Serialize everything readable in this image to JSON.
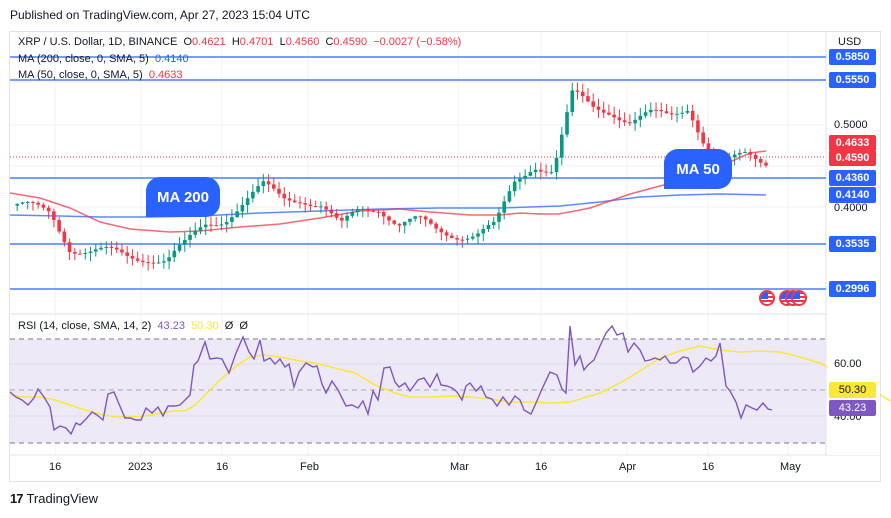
{
  "header": {
    "published": "Published on TradingView.com, Apr 27, 2023 15:04 UTC"
  },
  "symbol_legend": {
    "title": "XRP / U.S. Dollar, 1D, BINANCE",
    "o_label": "O",
    "o_value": "0.4621",
    "h_label": "H",
    "h_value": "0.4701",
    "l_label": "L",
    "l_value": "0.4560",
    "c_label": "C",
    "c_value": "0.4590",
    "change": "−0.0027 (−0.58%)"
  },
  "indicators": {
    "ma200": {
      "label": "MA (200, close, 0, SMA, 5)",
      "value": "0.4140",
      "color": "#2962ff"
    },
    "ma50": {
      "label": "MA (50, close, 0, SMA, 5)",
      "value": "0.4633",
      "color": "#f23645"
    },
    "rsi": {
      "label": "RSI (14, close, SMA, 14, 2)",
      "value": "43.23",
      "ma_value": "50.30",
      "extra1": "Ø",
      "extra2": "Ø"
    }
  },
  "price_axis": {
    "currency": "USD",
    "ticks": [
      "0.5000",
      "0.4000"
    ],
    "tags": [
      {
        "value": "0.5850",
        "type": "level",
        "color": "#2962ff"
      },
      {
        "value": "0.5550",
        "type": "level",
        "color": "#2962ff"
      },
      {
        "value": "0.4633",
        "type": "ma50",
        "color": "#f23645"
      },
      {
        "value": "0.4590",
        "type": "last",
        "color": "#f23645"
      },
      {
        "value": "0.4360",
        "type": "level",
        "color": "#2962ff"
      },
      {
        "value": "0.4140",
        "type": "ma200",
        "color": "#2962ff"
      },
      {
        "value": "0.3535",
        "type": "level",
        "color": "#2962ff"
      },
      {
        "value": "0.2996",
        "type": "level",
        "color": "#2962ff"
      }
    ]
  },
  "rsi_axis": {
    "ticks": [
      "60.00",
      "40.00"
    ],
    "tags": [
      {
        "value": "50.30",
        "color": "#fbe73a"
      },
      {
        "value": "43.23",
        "color": "#7e57c2"
      }
    ]
  },
  "time_axis": {
    "labels": [
      "16",
      "2023",
      "16",
      "Feb",
      "Mar",
      "16",
      "Apr",
      "16",
      "May"
    ]
  },
  "annotations": {
    "ma200_bubble": "MA 200",
    "ma50_bubble": "MA 50"
  },
  "footer": {
    "brand": "TradingView",
    "logo": "17"
  },
  "colors": {
    "up": "#089981",
    "down": "#f23645",
    "level_line": "#2962ff",
    "rsi_line": "#7e57c2",
    "rsi_ma": "#fbe73a",
    "rsi_band": "#ede9f7"
  },
  "chart_data": [
    {
      "type": "candlestick",
      "title": "XRP / U.S. Dollar, 1D, BINANCE",
      "xlabel": "",
      "ylabel": "USD",
      "x_ticks": [
        "16",
        "2023",
        "16",
        "Feb",
        "Mar",
        "16",
        "Apr",
        "16",
        "May"
      ],
      "ylim": [
        0.28,
        0.6
      ],
      "horizontal_levels": [
        0.585,
        0.555,
        0.436,
        0.3535,
        0.2996
      ],
      "last_close": 0.459,
      "ohlc_last": {
        "open": 0.4621,
        "high": 0.4701,
        "low": 0.456,
        "close": 0.459,
        "change": -0.0027,
        "change_pct": -0.58
      },
      "series": [
        {
          "name": "MA 200 (SMA)",
          "last": 0.414,
          "approx_path": [
            [
              "Dec 5",
              0.408
            ],
            [
              "Jan 1",
              0.408
            ],
            [
              "Feb 1",
              0.41
            ],
            [
              "Mar 1",
              0.411
            ],
            [
              "Mar 20",
              0.414
            ],
            [
              "Apr 10",
              0.414
            ],
            [
              "Apr 27",
              0.414
            ]
          ]
        },
        {
          "name": "MA 50 (SMA)",
          "last": 0.4633,
          "approx_path": [
            [
              "Dec 5",
              0.421
            ],
            [
              "Dec 20",
              0.407
            ],
            [
              "Jan 1",
              0.386
            ],
            [
              "Jan 16",
              0.384
            ],
            [
              "Feb 1",
              0.393
            ],
            [
              "Feb 20",
              0.403
            ],
            [
              "Mar 1",
              0.402
            ],
            [
              "Mar 16",
              0.396
            ],
            [
              "Apr 1",
              0.421
            ],
            [
              "Apr 16",
              0.447
            ],
            [
              "Apr 27",
              0.4633
            ]
          ]
        }
      ],
      "approx_closes": [
        [
          "Dec 5",
          0.402
        ],
        [
          "Dec 10",
          0.398
        ],
        [
          "Dec 15",
          0.393
        ],
        [
          "Dec 16",
          0.352
        ],
        [
          "Dec 20",
          0.345
        ],
        [
          "Dec 28",
          0.343
        ],
        [
          "Jan 1",
          0.339
        ],
        [
          "Jan 3",
          0.34
        ],
        [
          "Jan 5",
          0.335
        ],
        [
          "Jan 10",
          0.353
        ],
        [
          "Jan 14",
          0.378
        ],
        [
          "Jan 16",
          0.388
        ],
        [
          "Jan 20",
          0.406
        ],
        [
          "Jan 24",
          0.424
        ],
        [
          "Jan 28",
          0.411
        ],
        [
          "Feb 1",
          0.413
        ],
        [
          "Feb 5",
          0.402
        ],
        [
          "Feb 10",
          0.374
        ],
        [
          "Feb 15",
          0.398
        ],
        [
          "Feb 20",
          0.402
        ],
        [
          "Feb 25",
          0.378
        ],
        [
          "Mar 1",
          0.382
        ],
        [
          "Mar 5",
          0.371
        ],
        [
          "Mar 10",
          0.368
        ],
        [
          "Mar 14",
          0.367
        ],
        [
          "Mar 18",
          0.375
        ],
        [
          "Mar 20",
          0.43
        ],
        [
          "Mar 22",
          0.455
        ],
        [
          "Mar 24",
          0.445
        ],
        [
          "Mar 28",
          0.538
        ],
        [
          "Mar 29",
          0.523
        ],
        [
          "Apr 1",
          0.521
        ],
        [
          "Apr 5",
          0.505
        ],
        [
          "Apr 10",
          0.512
        ],
        [
          "Apr 13",
          0.512
        ],
        [
          "Apr 16",
          0.527
        ],
        [
          "Apr 19",
          0.469
        ],
        [
          "Apr 21",
          0.452
        ],
        [
          "Apr 24",
          0.466
        ],
        [
          "Apr 27",
          0.459
        ]
      ]
    },
    {
      "type": "line",
      "title": "RSI (14, close, SMA, 14, 2)",
      "ylim": [
        25,
        75
      ],
      "y_ticks": [
        60,
        40
      ],
      "bands": {
        "upper": 70,
        "middle": 50,
        "lower": 30
      },
      "series": [
        {
          "name": "RSI",
          "last": 43.23,
          "approx_values": [
            50,
            47,
            44,
            51,
            44,
            33,
            35,
            31,
            38,
            42,
            39,
            58,
            55,
            43,
            41,
            47,
            44,
            46,
            48,
            53,
            58,
            70,
            74,
            68,
            60,
            66,
            73,
            61,
            58,
            56,
            53,
            60,
            54,
            47,
            42,
            52,
            47,
            38,
            40,
            45,
            47,
            55,
            40,
            46,
            48,
            51,
            45,
            42,
            47,
            44,
            55,
            48,
            51,
            54,
            49,
            53,
            70,
            60,
            62,
            54,
            60,
            65,
            71,
            69,
            62,
            59,
            60,
            61,
            63,
            59,
            61,
            60,
            55,
            59,
            60,
            56,
            61,
            48,
            44,
            38,
            45,
            43,
            44,
            43.23
          ]
        },
        {
          "name": "RSI-based MA",
          "last": 50.3,
          "approx_values": [
            49,
            48,
            47,
            45,
            42,
            41,
            42,
            44,
            47,
            52,
            56,
            60,
            64,
            63,
            61,
            59,
            56,
            52,
            49,
            48,
            47,
            47,
            47,
            46,
            46,
            48,
            52,
            56,
            61,
            64,
            65,
            65,
            64,
            62,
            61,
            58,
            55,
            50.3
          ]
        }
      ]
    }
  ]
}
